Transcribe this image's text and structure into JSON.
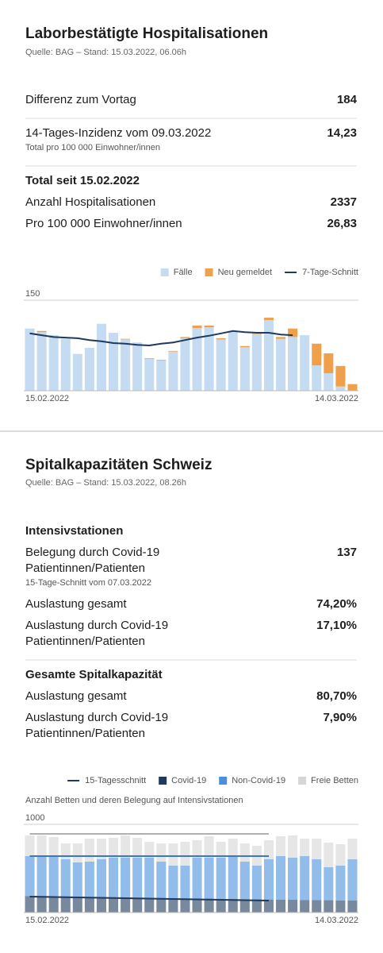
{
  "sections": [
    {
      "title": "Laborbestätigte Hospitalisationen",
      "source": "Quelle: BAG – Stand: 15.03.2022, 06.06h",
      "blocks": [
        {
          "rows": [
            {
              "label": [
                "Differenz zum Vortag"
              ],
              "value": "184"
            }
          ]
        },
        {
          "rows": [
            {
              "label": [
                "14-Tages-Inzidenz vom 09.03.2022"
              ],
              "value": "14,23",
              "note": "Total pro 100 000 Einwohner/innen"
            }
          ]
        },
        {
          "heading": "Total seit 15.02.2022",
          "rows": [
            {
              "label": [
                "Anzahl Hospitalisationen"
              ],
              "value": "2337"
            },
            {
              "label": [
                "Pro 100 000 Einwohner/innen"
              ],
              "value": "26,83"
            }
          ]
        }
      ]
    },
    {
      "title": "Spitalkapazitäten Schweiz",
      "source": "Quelle: BAG – Stand: 15.03.2022, 08.26h",
      "blocks": [
        {
          "heading": "Intensivstationen",
          "rows": [
            {
              "label": [
                "Belegung durch Covid-19",
                "Patientinnen/Patienten"
              ],
              "value": "137",
              "note": "15-Tage-Schnitt vom 07.03.2022"
            },
            {
              "label": [
                "Auslastung gesamt"
              ],
              "value": "74,20%"
            },
            {
              "label": [
                "Auslastung durch Covid-19",
                "Patientinnen/Patienten"
              ],
              "value": "17,10%"
            }
          ]
        },
        {
          "heading": "Gesamte Spitalkapazität",
          "rows": [
            {
              "label": [
                "Auslastung gesamt"
              ],
              "value": "80,70%"
            },
            {
              "label": [
                "Auslastung durch Covid-19",
                "Patientinnen/Patienten"
              ],
              "value": "7,90%"
            }
          ]
        }
      ]
    }
  ],
  "chart_data": [
    {
      "type": "bar",
      "stacked": true,
      "categories": [
        "15.02.2022",
        null,
        null,
        null,
        null,
        null,
        null,
        null,
        null,
        null,
        null,
        null,
        null,
        null,
        null,
        null,
        null,
        null,
        null,
        null,
        null,
        null,
        null,
        null,
        null,
        null,
        null,
        "14.03.2022"
      ],
      "series": [
        {
          "name": "Fälle",
          "color": "#c5dbf1",
          "values": [
            103,
            97,
            92,
            86,
            61,
            71,
            111,
            96,
            85,
            80,
            53,
            50,
            65,
            87,
            104,
            105,
            85,
            99,
            72,
            94,
            117,
            86,
            89,
            92,
            42,
            29,
            7,
            0
          ]
        },
        {
          "name": "Neu gemeldet",
          "color": "#f0a04b",
          "values": [
            0,
            2,
            0,
            0,
            0,
            0,
            0,
            0,
            1,
            0,
            1,
            1,
            1,
            2,
            4,
            3,
            2,
            0,
            2,
            1,
            4,
            3,
            14,
            0,
            36,
            33,
            34,
            11
          ]
        },
        {
          "name": "7-Tage-Schnitt",
          "kind": "line",
          "color": "#1f3a5c",
          "values": [
            95,
            92,
            89,
            88,
            87,
            84,
            82,
            79,
            78,
            76,
            75,
            78,
            80,
            84,
            88,
            91,
            95,
            99,
            97,
            96,
            96,
            93,
            92,
            null,
            null,
            null,
            null,
            null
          ]
        }
      ],
      "ylim": [
        0,
        150
      ],
      "yticks": [
        150
      ],
      "grid": true
    },
    {
      "type": "bar",
      "stacked": true,
      "subtitle": "Anzahl Betten und deren Belegung auf Intensivstationen",
      "bar_opacity": 0.6,
      "categories": [
        "15.02.2022",
        null,
        null,
        null,
        null,
        null,
        null,
        null,
        null,
        null,
        null,
        null,
        null,
        null,
        null,
        null,
        null,
        null,
        null,
        null,
        null,
        null,
        null,
        null,
        null,
        null,
        null,
        "14.03.2022"
      ],
      "series": [
        {
          "name": "15-Tagesschnitt",
          "kind": "line",
          "color": "#1f3a5c",
          "line_colors": [
            "#1f3a5c",
            "#3a78c2",
            "#b0b0b0"
          ],
          "values": [
            [
              180,
              178,
              176,
              173,
              171,
              169,
              167,
              164,
              162,
              160,
              158,
              155,
              153,
              151,
              149,
              146,
              144,
              142,
              140,
              137,
              135,
              null,
              null,
              null,
              null,
              null,
              null,
              null
            ],
            [
              460,
              462,
              464,
              467,
              469,
              471,
              473,
              476,
              478,
              480,
              482,
              485,
              487,
              489,
              491,
              494,
              496,
              498,
              500,
              503,
              505,
              null,
              null,
              null,
              null,
              null,
              null,
              null
            ],
            [
              252,
              252,
              252,
              252,
              252,
              252,
              252,
              252,
              252,
              252,
              252,
              252,
              252,
              252,
              252,
              252,
              252,
              252,
              252,
              252,
              252,
              null,
              null,
              null,
              null,
              null,
              null,
              null
            ]
          ]
        },
        {
          "name": "Covid-19",
          "color": "#1f3a5c",
          "values": [
            185,
            183,
            181,
            179,
            177,
            176,
            174,
            172,
            170,
            168,
            166,
            164,
            162,
            160,
            158,
            157,
            155,
            153,
            151,
            149,
            147,
            146,
            144,
            142,
            140,
            139,
            137,
            135
          ]
        },
        {
          "name": "Non-Covid-19",
          "color": "#4a8fdb",
          "values": [
            455,
            457,
            459,
            425,
            391,
            401,
            430,
            450,
            452,
            454,
            456,
            413,
            370,
            372,
            464,
            465,
            467,
            487,
            426,
            383,
            457,
            494,
            478,
            498,
            464,
            375,
            395,
            469
          ]
        },
        {
          "name": "Freie Betten",
          "color": "#d6d6d6",
          "values": [
            234,
            234,
            216,
            180,
            216,
            261,
            234,
            225,
            252,
            225,
            180,
            207,
            252,
            270,
            198,
            243,
            180,
            198,
            207,
            225,
            216,
            225,
            252,
            198,
            234,
            279,
            243,
            234
          ]
        }
      ],
      "ylim": [
        0,
        1000
      ],
      "yticks": [
        1000
      ],
      "grid": true
    }
  ]
}
